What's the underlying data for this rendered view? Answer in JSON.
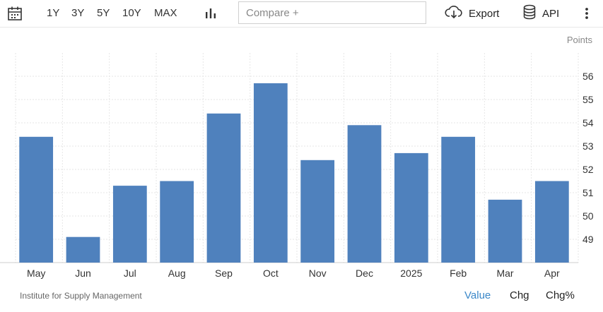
{
  "toolbar": {
    "ranges": [
      "1Y",
      "3Y",
      "5Y",
      "10Y",
      "MAX"
    ],
    "compare_placeholder": "Compare +",
    "export_label": "Export",
    "api_label": "API",
    "icons": [
      "calendar-icon",
      "bar-chart-icon",
      "cloud-download-icon",
      "database-icon",
      "more-vertical-icon"
    ]
  },
  "units_label": "Points",
  "footer": {
    "source": "Institute for Supply Management",
    "views": [
      "Value",
      "Chg",
      "Chg%"
    ],
    "active_view": "Value"
  },
  "colors": {
    "bar": "#4f81bd",
    "active_view": "#3a87c8"
  },
  "chart_data": {
    "type": "bar",
    "categories": [
      "May",
      "Jun",
      "Jul",
      "Aug",
      "Sep",
      "Oct",
      "Nov",
      "Dec",
      "2025",
      "Feb",
      "Mar",
      "Apr"
    ],
    "values": [
      53.4,
      49.1,
      51.3,
      51.5,
      54.4,
      55.7,
      52.4,
      53.9,
      52.7,
      53.4,
      50.7,
      51.5
    ],
    "yticks": [
      49,
      50,
      51,
      52,
      53,
      54,
      55,
      56
    ],
    "ylim": [
      48,
      57
    ],
    "ylabel": "Points",
    "grid": true,
    "y_axis_side": "right"
  }
}
